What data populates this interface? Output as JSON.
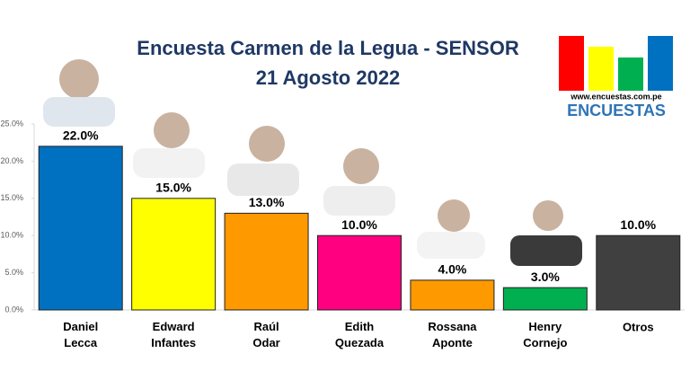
{
  "chart_data": {
    "type": "bar",
    "title": "Encuesta Carmen de la Legua - SENSOR",
    "subtitle": "21 Agosto 2022",
    "brand": {
      "url": "www.encuestas.com.pe",
      "name": "ENCUESTAS"
    },
    "categories": [
      "Daniel Lecca",
      "Edward Infantes",
      "Raúl Odar",
      "Edith Quezada",
      "Rossana Aponte",
      "Henry Cornejo",
      "Otros"
    ],
    "values": [
      22,
      15,
      13,
      10,
      4,
      3,
      10
    ],
    "value_labels": [
      "22.0%",
      "15.0%",
      "13.0%",
      "10.0%",
      "4.0%",
      "3.0%",
      "10.0%"
    ],
    "colors": [
      "#0070c0",
      "#ffff00",
      "#ff9900",
      "#ff0080",
      "#ff9900",
      "#00b050",
      "#404040"
    ],
    "ylim": [
      0,
      25
    ],
    "yticks": [
      {
        "value": 0,
        "label": "0.0%"
      },
      {
        "value": 5,
        "label": "5.0%"
      },
      {
        "value": 10,
        "label": "10.0%"
      },
      {
        "value": 15,
        "label": "15.0%"
      },
      {
        "value": 20,
        "label": "20.0%"
      },
      {
        "value": 25,
        "label": "25.0%"
      }
    ],
    "grid": false
  }
}
